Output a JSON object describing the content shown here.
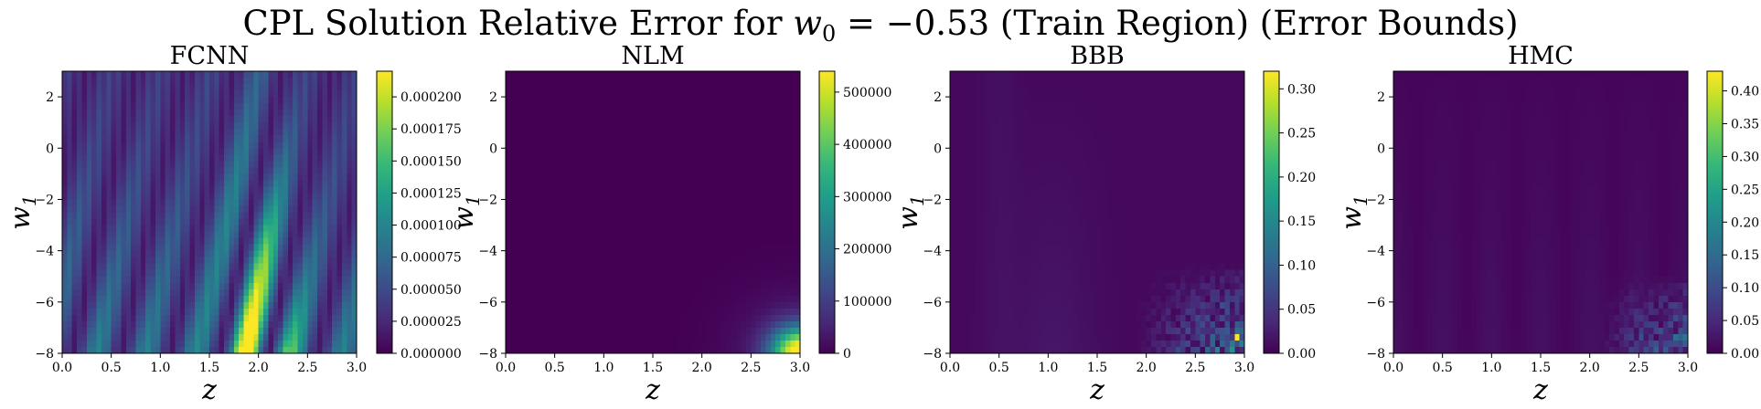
{
  "figure": {
    "title": "CPL Solution Relative Error for w₀ = −0.53 (Train Region) (Error Bounds)",
    "title_parts": {
      "prefix": "CPL Solution Relative Error for ",
      "var": "w",
      "sub": "0",
      "suffix": " = −0.53 (Train Region) (Error Bounds)"
    }
  },
  "colormap": {
    "name": "viridis",
    "stops": [
      "#440154",
      "#482878",
      "#3e4989",
      "#31688e",
      "#26828e",
      "#1f9e89",
      "#35b779",
      "#6ece58",
      "#b5de2b",
      "#fde725"
    ]
  },
  "chart_data": [
    {
      "type": "heatmap",
      "title": "FCNN",
      "xlabel": "z",
      "ylabel": "w",
      "ylabel_sub": "1",
      "xlim": [
        0.0,
        3.0
      ],
      "ylim": [
        -8,
        3
      ],
      "xticks": [
        "0.0",
        "0.5",
        "1.0",
        "1.5",
        "2.0",
        "2.5",
        "3.0"
      ],
      "yticks": [
        "2",
        "0",
        "−2",
        "−4",
        "−6",
        "−8"
      ],
      "colorbar": {
        "min": 0.0,
        "max": 0.00022,
        "ticks": [
          "0.000000",
          "0.000025",
          "0.000050",
          "0.000075",
          "0.000100",
          "0.000125",
          "0.000150",
          "0.000175",
          "0.000200"
        ]
      },
      "pattern": "striped_wave"
    },
    {
      "type": "heatmap",
      "title": "NLM",
      "xlabel": "z",
      "ylabel": "w",
      "ylabel_sub": "1",
      "xlim": [
        0.0,
        3.0
      ],
      "ylim": [
        -8,
        3
      ],
      "xticks": [
        "0.0",
        "0.5",
        "1.0",
        "1.5",
        "2.0",
        "2.5",
        "3.0"
      ],
      "yticks": [
        "2",
        "0",
        "−2",
        "−4",
        "−6",
        "−8"
      ],
      "colorbar": {
        "min": 0,
        "max": 540000,
        "ticks": [
          "0",
          "100000",
          "200000",
          "300000",
          "400000",
          "500000"
        ]
      },
      "pattern": "corner_peak"
    },
    {
      "type": "heatmap",
      "title": "BBB",
      "xlabel": "z",
      "ylabel": "w",
      "ylabel_sub": "1",
      "xlim": [
        0.0,
        3.0
      ],
      "ylim": [
        -8,
        3
      ],
      "xticks": [
        "0.0",
        "0.5",
        "1.0",
        "1.5",
        "2.0",
        "2.5",
        "3.0"
      ],
      "yticks": [
        "2",
        "0",
        "−2",
        "−4",
        "−6",
        "−8"
      ],
      "colorbar": {
        "min": 0.0,
        "max": 0.32,
        "ticks": [
          "0.00",
          "0.05",
          "0.10",
          "0.15",
          "0.20",
          "0.25",
          "0.30"
        ]
      },
      "pattern": "noisy_corner"
    },
    {
      "type": "heatmap",
      "title": "HMC",
      "xlabel": "z",
      "ylabel": "w",
      "ylabel_sub": "1",
      "xlim": [
        0.0,
        3.0
      ],
      "ylim": [
        -8,
        3
      ],
      "xticks": [
        "0.0",
        "0.5",
        "1.0",
        "1.5",
        "2.0",
        "2.5",
        "3.0"
      ],
      "yticks": [
        "2",
        "0",
        "−2",
        "−4",
        "−6",
        "−8"
      ],
      "colorbar": {
        "min": 0.0,
        "max": 0.43,
        "ticks": [
          "0.00",
          "0.05",
          "0.10",
          "0.15",
          "0.20",
          "0.25",
          "0.30",
          "0.35",
          "0.40"
        ]
      },
      "pattern": "noisy_corner_faint"
    }
  ]
}
